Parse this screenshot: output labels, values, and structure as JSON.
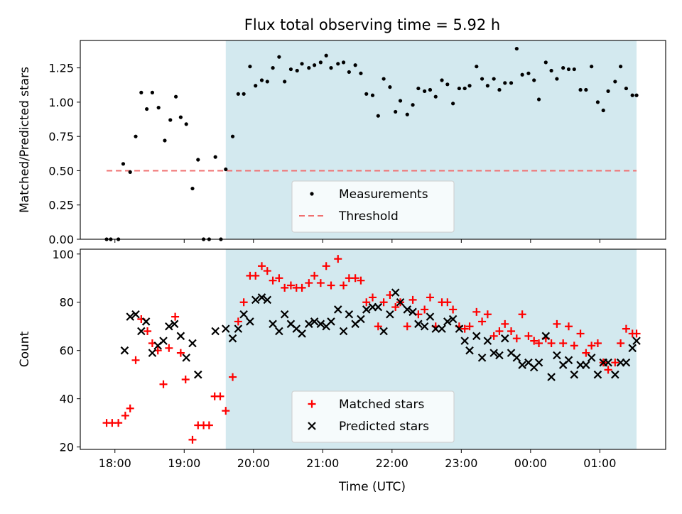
{
  "chart_data": {
    "type": "scatter",
    "title": "Flux total observing time = 5.92 h",
    "xlabel": "Time (UTC)",
    "x_axis": {
      "unit": "hours since 18:00 UTC",
      "range": [
        -0.5,
        7.95
      ],
      "ticks": [
        0,
        1,
        2,
        3,
        4,
        5,
        6,
        7
      ],
      "tick_labels": [
        "18:00",
        "19:00",
        "20:00",
        "21:00",
        "22:00",
        "23:00",
        "00:00",
        "01:00"
      ]
    },
    "observing_window": {
      "start": 1.6,
      "end": 7.53,
      "color": "#d3e9ef"
    },
    "panels": [
      {
        "ylabel": "Matched/Predicted stars",
        "ylim": [
          0,
          1.45
        ],
        "yticks": [
          0,
          0.25,
          0.5,
          0.75,
          1.0,
          1.25
        ],
        "ytick_labels": [
          "0.00",
          "0.25",
          "0.50",
          "0.75",
          "1.00",
          "1.25"
        ],
        "show_xtick_labels": false,
        "legend": {
          "position": "lower-center"
        },
        "threshold": {
          "name": "Threshold",
          "value": 0.5,
          "x_start": -0.12,
          "x_end": 7.53,
          "color": "#f07070",
          "style": "dashed"
        },
        "series": [
          {
            "name": "Measurements",
            "marker": "dot",
            "color": "#000000",
            "x": [
              -0.12,
              -0.06,
              0.05,
              0.12,
              0.22,
              0.3,
              0.38,
              0.46,
              0.54,
              0.63,
              0.72,
              0.8,
              0.88,
              0.95,
              1.03,
              1.12,
              1.2,
              1.28,
              1.36,
              1.45,
              1.53,
              1.6,
              1.7,
              1.78,
              1.86,
              1.95,
              2.03,
              2.12,
              2.2,
              2.28,
              2.37,
              2.45,
              2.54,
              2.63,
              2.7,
              2.8,
              2.88,
              2.97,
              3.05,
              3.12,
              3.22,
              3.3,
              3.38,
              3.47,
              3.55,
              3.63,
              3.72,
              3.8,
              3.88,
              3.97,
              4.05,
              4.12,
              4.22,
              4.3,
              4.38,
              4.47,
              4.55,
              4.63,
              4.72,
              4.8,
              4.88,
              4.97,
              5.05,
              5.12,
              5.22,
              5.3,
              5.38,
              5.47,
              5.55,
              5.63,
              5.72,
              5.8,
              5.88,
              5.97,
              6.05,
              6.12,
              6.22,
              6.3,
              6.38,
              6.47,
              6.55,
              6.63,
              6.72,
              6.8,
              6.88,
              6.97,
              7.05,
              7.12,
              7.22,
              7.3,
              7.38,
              7.47,
              7.53
            ],
            "y": [
              0.0,
              0.0,
              0.0,
              0.55,
              0.49,
              0.75,
              1.07,
              0.95,
              1.07,
              0.96,
              0.72,
              0.87,
              1.04,
              0.89,
              0.84,
              0.37,
              0.58,
              0.0,
              0.0,
              0.6,
              0.0,
              0.51,
              0.75,
              1.06,
              1.06,
              1.26,
              1.12,
              1.16,
              1.15,
              1.25,
              1.33,
              1.15,
              1.24,
              1.23,
              1.28,
              1.25,
              1.27,
              1.29,
              1.34,
              1.25,
              1.28,
              1.29,
              1.22,
              1.27,
              1.21,
              1.06,
              1.05,
              0.9,
              1.17,
              1.11,
              0.93,
              1.01,
              0.91,
              0.98,
              1.1,
              1.08,
              1.09,
              1.04,
              1.16,
              1.13,
              0.99,
              1.1,
              1.1,
              1.12,
              1.26,
              1.17,
              1.12,
              1.17,
              1.09,
              1.14,
              1.14,
              1.39,
              1.2,
              1.21,
              1.16,
              1.02,
              1.29,
              1.23,
              1.17,
              1.25,
              1.24,
              1.24,
              1.09,
              1.09,
              1.26,
              1.0,
              0.94,
              1.08,
              1.15,
              1.26,
              1.1,
              1.05,
              1.05
            ]
          }
        ]
      },
      {
        "ylabel": "Count",
        "ylim": [
          19,
          102
        ],
        "yticks": [
          20,
          40,
          60,
          80,
          100
        ],
        "ytick_labels": [
          "20",
          "40",
          "60",
          "80",
          "100"
        ],
        "show_xtick_labels": true,
        "legend": {
          "position": "lower-center"
        },
        "series": [
          {
            "name": "Matched stars",
            "marker": "plus",
            "color": "#ff0000",
            "x": [
              -0.12,
              -0.04,
              0.05,
              0.15,
              0.22,
              0.3,
              0.38,
              0.47,
              0.54,
              0.62,
              0.7,
              0.78,
              0.87,
              0.95,
              1.02,
              1.12,
              1.2,
              1.28,
              1.36,
              1.44,
              1.52,
              1.6,
              1.7,
              1.78,
              1.86,
              1.95,
              2.03,
              2.12,
              2.2,
              2.28,
              2.37,
              2.45,
              2.54,
              2.62,
              2.7,
              2.8,
              2.88,
              2.97,
              3.05,
              3.12,
              3.22,
              3.3,
              3.38,
              3.47,
              3.55,
              3.63,
              3.72,
              3.8,
              3.88,
              3.97,
              4.05,
              4.12,
              4.22,
              4.3,
              4.38,
              4.47,
              4.55,
              4.63,
              4.72,
              4.8,
              4.88,
              4.97,
              5.05,
              5.12,
              5.22,
              5.3,
              5.38,
              5.47,
              5.55,
              5.63,
              5.72,
              5.8,
              5.88,
              5.97,
              6.05,
              6.12,
              6.22,
              6.3,
              6.38,
              6.47,
              6.55,
              6.63,
              6.72,
              6.8,
              6.88,
              6.97,
              7.05,
              7.12,
              7.22,
              7.3,
              7.38,
              7.47,
              7.53
            ],
            "y": [
              30,
              30,
              30,
              33,
              36,
              56,
              73,
              68,
              63,
              60,
              46,
              61,
              74,
              59,
              48,
              23,
              29,
              29,
              29,
              41,
              41,
              35,
              49,
              72,
              80,
              91,
              91,
              95,
              93,
              89,
              90,
              86,
              87,
              86,
              86,
              88,
              91,
              88,
              95,
              87,
              98,
              87,
              90,
              90,
              89,
              80,
              82,
              70,
              80,
              83,
              78,
              80,
              70,
              81,
              75,
              77,
              82,
              70,
              80,
              80,
              77,
              70,
              69,
              70,
              76,
              72,
              75,
              66,
              68,
              71,
              68,
              65,
              75,
              66,
              64,
              63,
              65,
              63,
              71,
              63,
              70,
              62,
              67,
              59,
              62,
              63,
              55,
              52,
              55,
              63,
              69,
              67,
              67
            ]
          },
          {
            "name": "Predicted stars",
            "marker": "cross",
            "color": "#000000",
            "x": [
              0.14,
              0.22,
              0.3,
              0.38,
              0.45,
              0.54,
              0.62,
              0.7,
              0.78,
              0.86,
              0.95,
              1.03,
              1.12,
              1.2,
              1.45,
              1.6,
              1.7,
              1.78,
              1.86,
              1.95,
              2.03,
              2.12,
              2.2,
              2.28,
              2.37,
              2.45,
              2.54,
              2.62,
              2.7,
              2.8,
              2.88,
              2.97,
              3.05,
              3.12,
              3.22,
              3.3,
              3.38,
              3.47,
              3.55,
              3.63,
              3.72,
              3.8,
              3.88,
              3.97,
              4.05,
              4.12,
              4.22,
              4.3,
              4.38,
              4.47,
              4.55,
              4.63,
              4.72,
              4.8,
              4.88,
              4.97,
              5.05,
              5.12,
              5.22,
              5.3,
              5.38,
              5.47,
              5.55,
              5.63,
              5.72,
              5.8,
              5.88,
              5.97,
              6.05,
              6.12,
              6.22,
              6.3,
              6.38,
              6.47,
              6.55,
              6.63,
              6.72,
              6.8,
              6.88,
              6.97,
              7.05,
              7.12,
              7.22,
              7.3,
              7.38,
              7.47,
              7.53
            ],
            "y": [
              60,
              74,
              75,
              68,
              72,
              59,
              62,
              64,
              70,
              71,
              66,
              57,
              63,
              50,
              68,
              69,
              65,
              69,
              75,
              72,
              81,
              82,
              81,
              71,
              68,
              75,
              71,
              69,
              67,
              71,
              72,
              71,
              70,
              72,
              77,
              68,
              75,
              71,
              73,
              77,
              78,
              78,
              68,
              75,
              84,
              80,
              77,
              76,
              71,
              70,
              74,
              69,
              69,
              72,
              73,
              69,
              64,
              60,
              66,
              57,
              64,
              59,
              58,
              65,
              59,
              57,
              54,
              55,
              53,
              55,
              66,
              49,
              58,
              54,
              56,
              50,
              54,
              54,
              57,
              50,
              55,
              55,
              50,
              55,
              55,
              61,
              64
            ]
          }
        ]
      }
    ]
  }
}
